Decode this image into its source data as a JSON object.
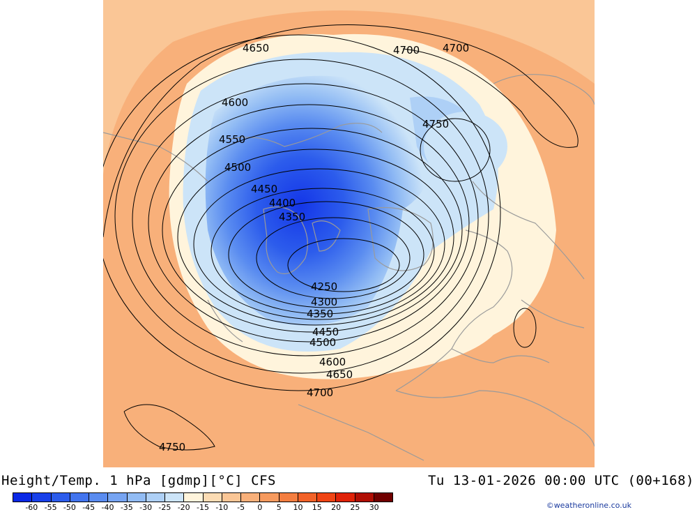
{
  "title": "Height/Temp. 1 hPa [gdmp][°C] CFS",
  "datetime": "Tu 13-01-2026 00:00 UTC (00+168)",
  "credit": "©weatheronline.co.uk",
  "colorbar": {
    "tick_labels": [
      "-60",
      "-55",
      "-50",
      "-45",
      "-40",
      "-35",
      "-30",
      "-25",
      "-20",
      "-15",
      "-10",
      "-5",
      "0",
      "5",
      "10",
      "15",
      "20",
      "25",
      "30"
    ],
    "colors": [
      "#0a28e6",
      "#1840ea",
      "#2c5cec",
      "#4274ee",
      "#5a8cf0",
      "#76a4f2",
      "#92bcf4",
      "#aed0f6",
      "#cce4f8",
      "#fff4dc",
      "#fcdcb4",
      "#fac696",
      "#f8b07a",
      "#f69a5e",
      "#f47e40",
      "#f26228",
      "#f04414",
      "#e02208",
      "#b00e04",
      "#700000"
    ]
  },
  "contours": {
    "labels": [
      "4650",
      "4700",
      "4700",
      "4600",
      "4750",
      "4550",
      "4500",
      "4450",
      "4400",
      "4350",
      "4250",
      "4300",
      "4350",
      "4450",
      "4500",
      "4600",
      "4650",
      "4700",
      "4750"
    ]
  }
}
